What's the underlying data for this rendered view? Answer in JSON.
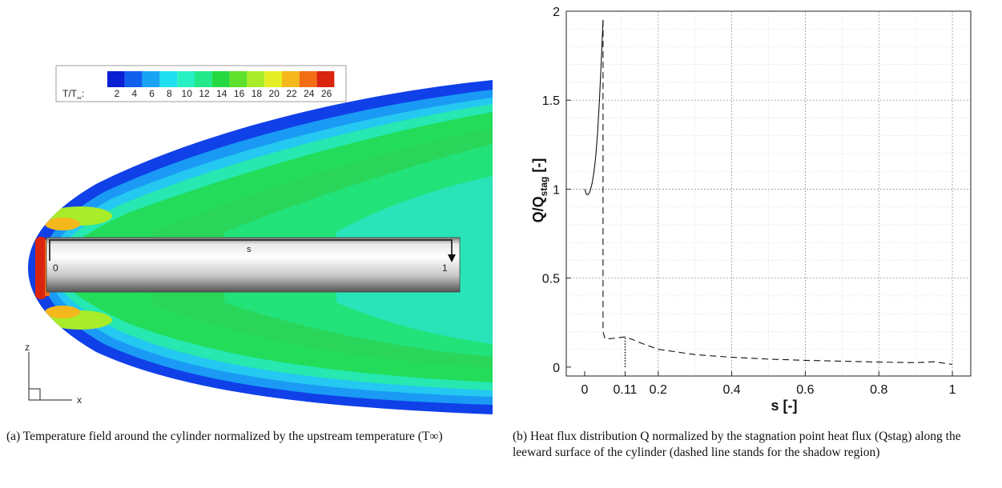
{
  "left_panel": {
    "legend_label": "T/T",
    "legend_label_sub": "∞",
    "legend_label_colon": ":",
    "legend_ticks": [
      "2",
      "4",
      "6",
      "8",
      "10",
      "12",
      "14",
      "16",
      "18",
      "20",
      "22",
      "24",
      "26"
    ],
    "colors": [
      "#0a1fd4",
      "#1060ee",
      "#1aa3f5",
      "#1fe0f0",
      "#27f0c2",
      "#22e88a",
      "#25d842",
      "#5fe02a",
      "#a8ec2a",
      "#e6ef24",
      "#f5b81c",
      "#f36d14",
      "#d9240e"
    ],
    "cylinder_label_s": "s",
    "cylinder_label_0": "0",
    "cylinder_label_1": "1",
    "axis_z": "z",
    "axis_x": "x"
  },
  "chart_data": {
    "type": "line",
    "xlabel": "s [-]",
    "ylabel": "Q/Q",
    "ylabel_sub": "stag",
    "ylabel_suffix": " [-]",
    "xlim": [
      -0.05,
      1.05
    ],
    "ylim": [
      -0.05,
      2.0
    ],
    "xticks": [
      {
        "v": 0,
        "label": "0"
      },
      {
        "v": 0.11,
        "label": "0.11"
      },
      {
        "v": 0.2,
        "label": "0.2"
      },
      {
        "v": 0.4,
        "label": "0.4"
      },
      {
        "v": 0.6,
        "label": "0.6"
      },
      {
        "v": 0.8,
        "label": "0.8"
      },
      {
        "v": 1,
        "label": "1"
      }
    ],
    "yticks": [
      {
        "v": 0,
        "label": "0"
      },
      {
        "v": 0.5,
        "label": "0.5"
      },
      {
        "v": 1,
        "label": "1"
      },
      {
        "v": 1.5,
        "label": "1.5"
      },
      {
        "v": 2,
        "label": "2"
      }
    ],
    "grid_major_x": [
      0.2,
      0.4,
      0.6,
      0.8,
      1.0
    ],
    "grid_major_y": [
      0.5,
      1.0,
      1.5
    ],
    "grid_minor_x": [
      0.1,
      0.3,
      0.5,
      0.7,
      0.9
    ],
    "grid_minor_y": [
      0.1,
      0.2,
      0.3,
      0.4,
      0.6,
      0.7,
      0.8,
      0.9,
      1.1,
      1.2,
      1.3,
      1.4,
      1.6,
      1.7,
      1.8,
      1.9
    ],
    "series": [
      {
        "style": "solid",
        "x": [
          0,
          0.005,
          0.01,
          0.015,
          0.02,
          0.025,
          0.03,
          0.035,
          0.04,
          0.045,
          0.05
        ],
        "y": [
          1.0,
          0.97,
          0.97,
          0.99,
          1.03,
          1.09,
          1.18,
          1.31,
          1.49,
          1.71,
          1.95
        ]
      },
      {
        "style": "dashed",
        "x": [
          0.05,
          0.05,
          0.055,
          0.07,
          0.09,
          0.11,
          0.13,
          0.16,
          0.2,
          0.3,
          0.4,
          0.5,
          0.6,
          0.7,
          0.8,
          0.9,
          0.95,
          1.0
        ],
        "y": [
          1.95,
          0.2,
          0.16,
          0.16,
          0.165,
          0.17,
          0.155,
          0.13,
          0.1,
          0.07,
          0.055,
          0.045,
          0.038,
          0.033,
          0.028,
          0.025,
          0.03,
          0.015
        ]
      },
      {
        "style": "dotted",
        "x": [
          0.11,
          0.11
        ],
        "y": [
          0.0,
          0.17
        ]
      }
    ]
  },
  "captions": {
    "a": "(a) Temperature field around the cylinder normalized by the upstream temperature (T∞)",
    "b": "(b) Heat flux distribution Q normalized by the stagnation point heat flux (Qstag) along the leeward surface of the cylinder (dashed line stands for the shadow region)"
  }
}
